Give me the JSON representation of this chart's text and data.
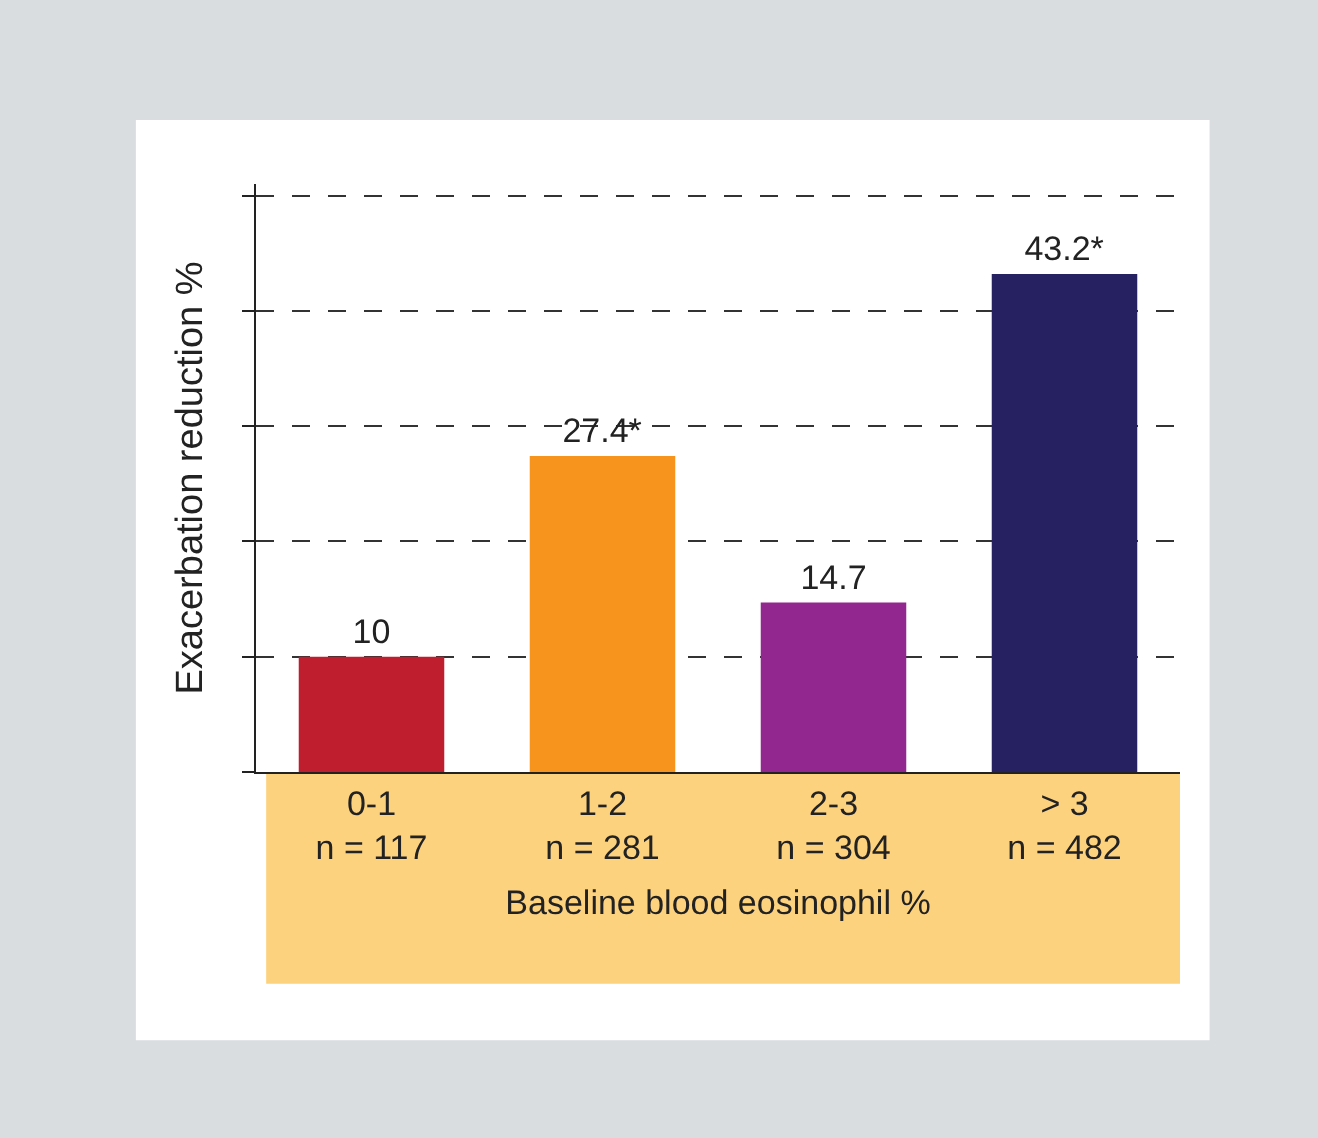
{
  "chart_data": {
    "type": "bar",
    "xlabel": "Baseline blood eosinophil %",
    "ylabel": "Exacerbation reduction %",
    "categories": [
      "0-1\nn = 117",
      "1-2\nn = 281",
      "2-3\nn = 304",
      "> 3\nn = 482"
    ],
    "values": [
      10,
      27.4,
      14.7,
      43.2
    ],
    "colors": [
      "#be1e2d",
      "#f7941d",
      "#92278f",
      "#262262"
    ],
    "value_labels": [
      "10",
      "27.4*",
      "14.7",
      "43.2*"
    ],
    "ylim": [
      0,
      51
    ],
    "yticks": [
      {
        "value": 0,
        "label": null
      },
      {
        "value": 10,
        "label": null
      },
      {
        "value": 20,
        "label": null
      },
      {
        "value": 30,
        "label": null
      },
      {
        "value": 40,
        "label": null
      },
      {
        "value": 50,
        "label": null
      }
    ],
    "grid": "y",
    "tick_labels": "x",
    "legend": false
  }
}
